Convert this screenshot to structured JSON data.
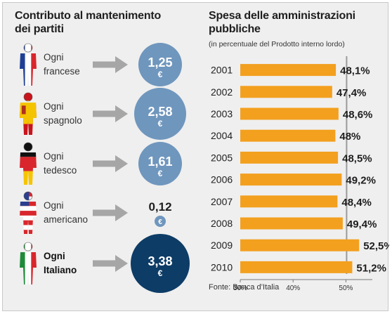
{
  "left": {
    "title_line1": "Contributo al mantenimento",
    "title_line2": "dei partiti",
    "rows": [
      {
        "label_line1": "Ogni",
        "label_line2": "francese",
        "value": "1,25",
        "currency": "€",
        "flag": "france-flag-person-icon",
        "bold": false,
        "circle": "medium",
        "color": "#6f96bd"
      },
      {
        "label_line1": "Ogni",
        "label_line2": "spagnolo",
        "value": "2,58",
        "currency": "€",
        "flag": "spain-flag-person-icon",
        "bold": false,
        "circle": "large",
        "color": "#6f96bd"
      },
      {
        "label_line1": "Ogni",
        "label_line2": "tedesco",
        "value": "1,61",
        "currency": "€",
        "flag": "germany-flag-person-icon",
        "bold": false,
        "circle": "medium",
        "color": "#6f96bd"
      },
      {
        "label_line1": "Ogni",
        "label_line2": "americano",
        "value": "0,12",
        "currency": "€",
        "flag": "usa-flag-person-icon",
        "bold": false,
        "circle": "tiny",
        "color": "#6f96bd"
      },
      {
        "label_line1": "Ogni",
        "label_line2": "Italiano",
        "value": "3,38",
        "currency": "€",
        "flag": "italy-flag-person-icon",
        "bold": true,
        "circle": "xlarge",
        "color": "#0d3c66"
      }
    ]
  },
  "chart_data": {
    "type": "bar",
    "orientation": "horizontal",
    "title_line1": "Spesa delle amministrazioni",
    "title_line2": "pubbliche",
    "subtitle": "(in percentuale del Prodotto interno lordo)",
    "categories": [
      "2001",
      "2002",
      "2003",
      "2004",
      "2005",
      "2006",
      "2007",
      "2008",
      "2009",
      "2010"
    ],
    "values": [
      48.1,
      47.4,
      48.6,
      48,
      48.5,
      49.2,
      48.4,
      49.4,
      52.5,
      51.2
    ],
    "value_labels": [
      "48,1%",
      "47,4%",
      "48,6%",
      "48%",
      "48,5%",
      "49,2%",
      "48,4%",
      "49,4%",
      "52,5%",
      "51,2%"
    ],
    "xlim": [
      30,
      55
    ],
    "xticks": [
      30,
      40,
      50
    ],
    "xtick_labels": [
      "30%",
      "40%",
      "50%"
    ],
    "bar_color": "#f3a01f",
    "source": "Fonte: Banca d’Italia"
  }
}
